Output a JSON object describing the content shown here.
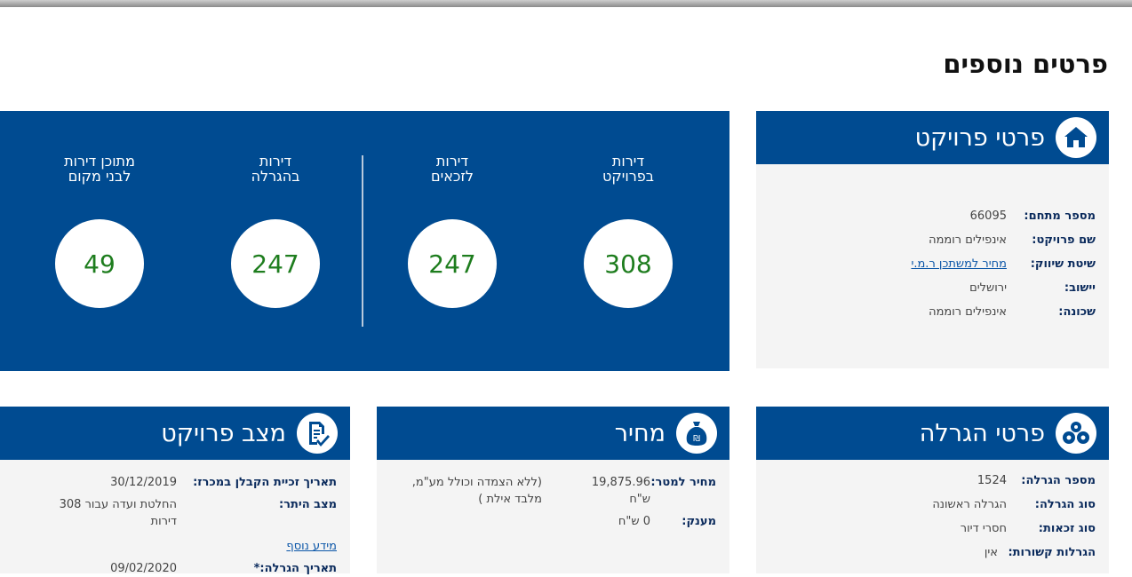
{
  "page": {
    "title": "פרטים נוספים"
  },
  "project_details": {
    "title": "פרטי פרויקט",
    "icon": "house-icon",
    "rows": [
      {
        "label": "מספר מתחם:",
        "value": "66095"
      },
      {
        "label": "שם פרויקט:",
        "value": "אינפילים רוממה"
      },
      {
        "label": "שיטת שיווק:",
        "value": "מחיר למשתכן ר.מ.י"
      },
      {
        "label": "יישוב:",
        "value": "ירושלים"
      },
      {
        "label": "שכונה:",
        "value": "אינפילים רוממה"
      }
    ]
  },
  "stats": [
    {
      "label_line1": "דירות",
      "label_line2": "בפרויקט",
      "value": "308"
    },
    {
      "label_line1": "דירות",
      "label_line2": "לזכאים",
      "value": "247"
    },
    {
      "label_line1": "דירות",
      "label_line2": "בהגרלה",
      "value": "247"
    },
    {
      "label_line1": "מתוכן דירות",
      "label_line2": "לבני מקום",
      "value": "49"
    }
  ],
  "lottery_details": {
    "title": "פרטי הגרלה",
    "icon": "lottery-balls-icon",
    "rows": [
      {
        "label": "מספר הגרלה:",
        "value": "1524"
      },
      {
        "label": "סוג הגרלה:",
        "value": "הגרלה ראשונה"
      },
      {
        "label": "סוג זכאות:",
        "value": "חסרי דיור"
      },
      {
        "label": "הגרלות קשורות:",
        "value": "אין"
      }
    ]
  },
  "price": {
    "title": "מחיר",
    "icon": "money-bag-icon",
    "per_meter_label": "מחיר למטר:",
    "per_meter_value": "19,875.96 ש\"ח",
    "per_meter_note": "(ללא הצמדה וכולל מע\"מ, מלבד אילת )",
    "grant_label": "מענק:",
    "grant_value": "0 ש\"ח"
  },
  "project_status": {
    "title": "מצב פרויקט",
    "icon": "document-check-icon",
    "contractor_date_label": "תאריך זכיית הקבלן במכרז:",
    "contractor_date_value": "30/12/2019",
    "permit_label": "מצב היתר:",
    "permit_value": "החלטת ועדה עבור 308 דירות",
    "more_info": "מידע נוסף",
    "lottery_date_label": "תאריך הגרלה:*",
    "lottery_date_value": "09/02/2020"
  },
  "colors": {
    "brand_blue": "#004b91",
    "number_green": "#1e7d1e",
    "panel_gray": "#f4f4f4"
  }
}
